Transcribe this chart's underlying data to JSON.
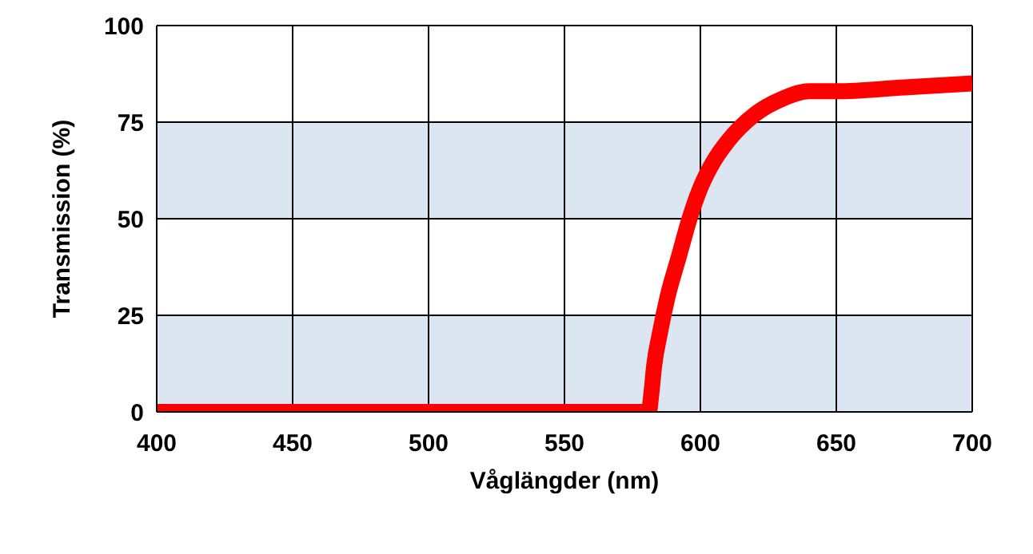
{
  "chart_data": {
    "type": "line",
    "xlabel": "Våglängder (nm)",
    "ylabel": "Transmission (%)",
    "x": [
      400,
      450,
      500,
      550,
      581,
      582,
      583,
      585,
      588,
      592,
      596,
      600,
      605,
      610,
      620,
      630,
      640,
      650,
      675,
      700
    ],
    "series": [
      {
        "color": "#ff0000",
        "values": [
          0,
          0,
          0,
          0,
          0,
          5,
          12,
          20,
          30,
          40,
          50,
          58,
          65,
          70,
          77,
          81,
          83,
          83,
          84,
          85
        ]
      }
    ],
    "xlim": [
      400,
      700
    ],
    "xticks": [
      400,
      450,
      500,
      550,
      600,
      650,
      700
    ],
    "ylim": [
      0,
      100
    ],
    "yticks": [
      0,
      25,
      50,
      75,
      100
    ],
    "grid": true,
    "legend": false,
    "marker": "none",
    "line_style": "solid",
    "bands": [
      {
        "axis": "y",
        "from": 0,
        "to": 25,
        "color": "#dce6f2"
      },
      {
        "axis": "y",
        "from": 50,
        "to": 75,
        "color": "#dce6f2"
      }
    ]
  }
}
